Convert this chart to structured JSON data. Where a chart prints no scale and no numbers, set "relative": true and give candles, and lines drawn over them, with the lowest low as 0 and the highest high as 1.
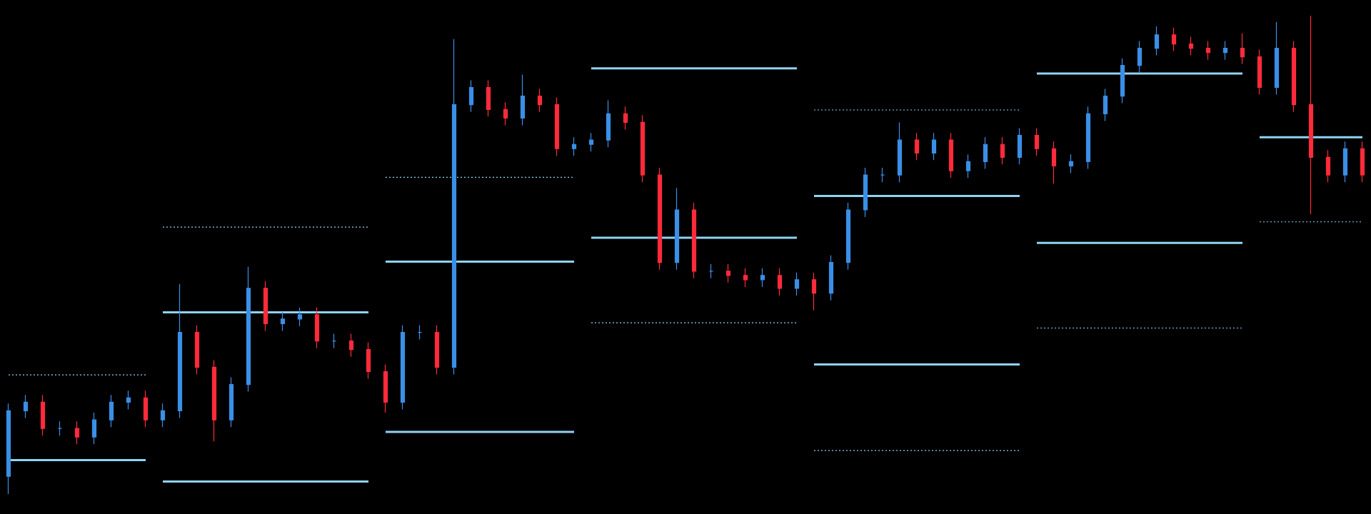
{
  "chart_data": {
    "type": "candlestick",
    "relative": true,
    "grid": false,
    "marker": "none",
    "categories": [
      null,
      null,
      null,
      null,
      null,
      null,
      null,
      null,
      null,
      null,
      null,
      null,
      null,
      null,
      null,
      null,
      null,
      null,
      null,
      null,
      null,
      null,
      null,
      null,
      null,
      null,
      null,
      null,
      null,
      null,
      null,
      null,
      null,
      null,
      null,
      null,
      null,
      null,
      null,
      null,
      null,
      null,
      null,
      null,
      null,
      null,
      null,
      null,
      null,
      null,
      null,
      null,
      null,
      null,
      null,
      null,
      null,
      null,
      null,
      null,
      null,
      null,
      null,
      null,
      null,
      null,
      null,
      null,
      null,
      null,
      null,
      null,
      null,
      null,
      null,
      null,
      null,
      null,
      null,
      null
    ],
    "colors": [
      "#3a8fe6",
      "#3a8fe6",
      "#ff2b3b",
      "#3a8fe6",
      "#ff2b3b",
      "#3a8fe6",
      "#3a8fe6",
      "#3a8fe6",
      "#ff2b3b",
      "#3a8fe6",
      "#3a8fe6",
      "#ff2b3b",
      "#ff2b3b",
      "#3a8fe6",
      "#3a8fe6",
      "#ff2b3b",
      "#3a8fe6",
      "#3a8fe6",
      "#ff2b3b",
      "#3a8fe6",
      "#ff2b3b",
      "#ff2b3b",
      "#ff2b3b",
      "#3a8fe6",
      "#3a8fe6",
      "#ff2b3b",
      "#3a8fe6",
      "#3a8fe6",
      "#ff2b3b",
      "#ff2b3b",
      "#3a8fe6",
      "#ff2b3b",
      "#ff2b3b",
      "#3a8fe6",
      "#3a8fe6",
      "#3a8fe6",
      "#ff2b3b",
      "#ff2b3b",
      "#ff2b3b",
      "#3a8fe6",
      "#ff2b3b",
      "#3a8fe6",
      "#ff2b3b",
      "#ff2b3b",
      "#3a8fe6",
      "#ff2b3b",
      "#3a8fe6",
      "#ff2b3b",
      "#3a8fe6",
      "#3a8fe6",
      "#3a8fe6",
      "#3a8fe6",
      "#3a8fe6",
      "#ff2b3b",
      "#3a8fe6",
      "#ff2b3b",
      "#3a8fe6",
      "#3a8fe6",
      "#ff2b3b",
      "#3a8fe6",
      "#ff2b3b",
      "#ff2b3b",
      "#3a8fe6",
      "#3a8fe6",
      "#3a8fe6",
      "#3a8fe6",
      "#3a8fe6",
      "#3a8fe6",
      "#ff2b3b",
      "#ff2b3b",
      "#ff2b3b",
      "#3a8fe6",
      "#ff2b3b",
      "#ff2b3b",
      "#3a8fe6",
      "#ff2b3b",
      "#ff2b3b",
      "#ff2b3b",
      "#3a8fe6",
      "#ff2b3b"
    ],
    "ohlc": [
      [
        0.037,
        0.189,
        0,
        0.174
      ],
      [
        0.174,
        0.207,
        0.159,
        0.192
      ],
      [
        0.192,
        0.207,
        0.122,
        0.137
      ],
      [
        0.137,
        0.152,
        0.122,
        0.137
      ],
      [
        0.137,
        0.152,
        0.104,
        0.119
      ],
      [
        0.119,
        0.17,
        0.104,
        0.155
      ],
      [
        0.155,
        0.207,
        0.14,
        0.192
      ],
      [
        0.192,
        0.216,
        0.177,
        0.201
      ],
      [
        0.201,
        0.216,
        0.14,
        0.155
      ],
      [
        0.155,
        0.189,
        0.14,
        0.174
      ],
      [
        0.174,
        0.439,
        0.159,
        0.338
      ],
      [
        0.338,
        0.353,
        0.25,
        0.265
      ],
      [
        0.265,
        0.28,
        0.11,
        0.155
      ],
      [
        0.155,
        0.244,
        0.14,
        0.229
      ],
      [
        0.229,
        0.475,
        0.214,
        0.43
      ],
      [
        0.43,
        0.445,
        0.341,
        0.356
      ],
      [
        0.356,
        0.381,
        0.341,
        0.366
      ],
      [
        0.366,
        0.39,
        0.351,
        0.375
      ],
      [
        0.375,
        0.39,
        0.305,
        0.32
      ],
      [
        0.32,
        0.335,
        0.305,
        0.32
      ],
      [
        0.32,
        0.335,
        0.287,
        0.302
      ],
      [
        0.302,
        0.317,
        0.241,
        0.256
      ],
      [
        0.256,
        0.271,
        0.17,
        0.192
      ],
      [
        0.192,
        0.353,
        0.177,
        0.338
      ],
      [
        0.338,
        0.353,
        0.323,
        0.338
      ],
      [
        0.338,
        0.353,
        0.25,
        0.265
      ],
      [
        0.265,
        0.951,
        0.25,
        0.814
      ],
      [
        0.814,
        0.865,
        0.799,
        0.85
      ],
      [
        0.85,
        0.865,
        0.789,
        0.804
      ],
      [
        0.804,
        0.819,
        0.771,
        0.786
      ],
      [
        0.786,
        0.877,
        0.771,
        0.832
      ],
      [
        0.832,
        0.847,
        0.799,
        0.814
      ],
      [
        0.814,
        0.829,
        0.707,
        0.722
      ],
      [
        0.722,
        0.746,
        0.707,
        0.731
      ],
      [
        0.731,
        0.755,
        0.716,
        0.74
      ],
      [
        0.74,
        0.823,
        0.725,
        0.795
      ],
      [
        0.795,
        0.81,
        0.762,
        0.777
      ],
      [
        0.777,
        0.792,
        0.652,
        0.667
      ],
      [
        0.667,
        0.682,
        0.469,
        0.484
      ],
      [
        0.484,
        0.64,
        0.469,
        0.594
      ],
      [
        0.594,
        0.609,
        0.451,
        0.466
      ],
      [
        0.466,
        0.481,
        0.451,
        0.466
      ],
      [
        0.466,
        0.481,
        0.442,
        0.457
      ],
      [
        0.457,
        0.472,
        0.433,
        0.448
      ],
      [
        0.448,
        0.472,
        0.433,
        0.457
      ],
      [
        0.457,
        0.472,
        0.415,
        0.43
      ],
      [
        0.43,
        0.463,
        0.415,
        0.448
      ],
      [
        0.448,
        0.463,
        0.384,
        0.42
      ],
      [
        0.42,
        0.499,
        0.405,
        0.484
      ],
      [
        0.484,
        0.609,
        0.469,
        0.594
      ],
      [
        0.594,
        0.682,
        0.579,
        0.667
      ],
      [
        0.667,
        0.682,
        0.652,
        0.667
      ],
      [
        0.667,
        0.777,
        0.652,
        0.74
      ],
      [
        0.74,
        0.755,
        0.698,
        0.713
      ],
      [
        0.713,
        0.755,
        0.698,
        0.74
      ],
      [
        0.74,
        0.755,
        0.661,
        0.676
      ],
      [
        0.676,
        0.71,
        0.661,
        0.695
      ],
      [
        0.695,
        0.746,
        0.68,
        0.731
      ],
      [
        0.731,
        0.746,
        0.689,
        0.704
      ],
      [
        0.704,
        0.765,
        0.689,
        0.75
      ],
      [
        0.75,
        0.765,
        0.707,
        0.722
      ],
      [
        0.722,
        0.737,
        0.649,
        0.686
      ],
      [
        0.686,
        0.71,
        0.671,
        0.695
      ],
      [
        0.695,
        0.81,
        0.68,
        0.795
      ],
      [
        0.795,
        0.847,
        0.78,
        0.832
      ],
      [
        0.832,
        0.911,
        0.817,
        0.896
      ],
      [
        0.896,
        0.947,
        0.881,
        0.932
      ],
      [
        0.932,
        0.978,
        0.917,
        0.96
      ],
      [
        0.96,
        0.975,
        0.926,
        0.941
      ],
      [
        0.941,
        0.956,
        0.917,
        0.932
      ],
      [
        0.932,
        0.947,
        0.908,
        0.923
      ],
      [
        0.923,
        0.947,
        0.908,
        0.932
      ],
      [
        0.932,
        0.963,
        0.899,
        0.914
      ],
      [
        0.914,
        0.929,
        0.835,
        0.85
      ],
      [
        0.85,
        0.987,
        0.835,
        0.932
      ],
      [
        0.932,
        0.947,
        0.799,
        0.814
      ],
      [
        0.814,
        1,
        0.585,
        0.704
      ],
      [
        0.704,
        0.719,
        0.652,
        0.667
      ],
      [
        0.667,
        0.737,
        0.652,
        0.722
      ],
      [
        0.722,
        0.737,
        0.652,
        0.667
      ]
    ],
    "series": [
      {
        "type": "line",
        "color": "#8fd3f4",
        "line_style": "solid",
        "values": [
          0.071,
          0.071,
          0.071,
          0.071,
          0.071,
          0.071,
          0.071,
          0.071,
          0.071,
          null,
          null,
          null,
          null,
          null,
          null,
          null,
          null,
          null,
          null,
          null,
          null,
          null,
          null,
          null,
          null,
          null,
          null,
          null,
          null,
          null,
          null,
          null,
          null,
          null,
          null,
          null,
          null,
          null,
          null,
          null,
          null,
          null,
          null,
          null,
          null,
          null,
          null,
          null,
          null,
          null,
          null,
          null,
          null,
          null,
          null,
          null,
          null,
          null,
          null,
          null,
          null,
          null,
          null,
          null,
          null,
          null,
          null,
          null,
          null,
          null,
          null,
          null,
          null,
          null,
          null,
          null,
          null,
          null,
          null,
          null
        ]
      },
      {
        "type": "line",
        "color": "#8fd3f4",
        "line_style": "dotted",
        "values": [
          0.249,
          0.249,
          0.249,
          0.249,
          0.249,
          0.249,
          0.249,
          0.249,
          0.249,
          null,
          null,
          null,
          null,
          null,
          null,
          null,
          null,
          null,
          null,
          null,
          null,
          null,
          null,
          null,
          null,
          null,
          null,
          null,
          null,
          null,
          null,
          null,
          null,
          null,
          null,
          null,
          null,
          null,
          null,
          null,
          null,
          null,
          null,
          null,
          null,
          null,
          null,
          null,
          null,
          null,
          null,
          null,
          null,
          null,
          null,
          null,
          null,
          null,
          null,
          null,
          null,
          null,
          null,
          null,
          null,
          null,
          null,
          null,
          null,
          null,
          null,
          null,
          null,
          null,
          null,
          null,
          null,
          null,
          null,
          null
        ]
      },
      {
        "type": "line",
        "color": "#8fd3f4",
        "line_style": "solid",
        "values": [
          null,
          null,
          null,
          null,
          null,
          null,
          null,
          null,
          null,
          0.38,
          0.38,
          0.38,
          0.38,
          0.38,
          0.38,
          0.38,
          0.38,
          0.38,
          0.38,
          0.38,
          0.38,
          0.38,
          null,
          null,
          null,
          null,
          null,
          null,
          null,
          null,
          null,
          null,
          null,
          null,
          null,
          null,
          null,
          null,
          null,
          null,
          null,
          null,
          null,
          null,
          null,
          null,
          null,
          null,
          null,
          null,
          null,
          null,
          null,
          null,
          null,
          null,
          null,
          null,
          null,
          null,
          null,
          null,
          null,
          null,
          null,
          null,
          null,
          null,
          null,
          null,
          null,
          null,
          null,
          null,
          null,
          null,
          null,
          null,
          null,
          null
        ]
      },
      {
        "type": "line",
        "color": "#8fd3f4",
        "line_style": "solid",
        "values": [
          null,
          null,
          null,
          null,
          null,
          null,
          null,
          null,
          null,
          0.026,
          0.026,
          0.026,
          0.026,
          0.026,
          0.026,
          0.026,
          0.026,
          0.026,
          0.026,
          0.026,
          0.026,
          0.026,
          null,
          null,
          null,
          null,
          null,
          null,
          null,
          null,
          null,
          null,
          null,
          null,
          null,
          null,
          null,
          null,
          null,
          null,
          null,
          null,
          null,
          null,
          null,
          null,
          null,
          null,
          null,
          null,
          null,
          null,
          null,
          null,
          null,
          null,
          null,
          null,
          null,
          null,
          null,
          null,
          null,
          null,
          null,
          null,
          null,
          null,
          null,
          null,
          null,
          null,
          null,
          null,
          null,
          null,
          null,
          null,
          null,
          null
        ]
      },
      {
        "type": "line",
        "color": "#8fd3f4",
        "line_style": "dotted",
        "values": [
          null,
          null,
          null,
          null,
          null,
          null,
          null,
          null,
          null,
          0.558,
          0.558,
          0.558,
          0.558,
          0.558,
          0.558,
          0.558,
          0.558,
          0.558,
          0.558,
          0.558,
          0.558,
          0.558,
          null,
          null,
          null,
          null,
          null,
          null,
          null,
          null,
          null,
          null,
          null,
          null,
          null,
          null,
          null,
          null,
          null,
          null,
          null,
          null,
          null,
          null,
          null,
          null,
          null,
          null,
          null,
          null,
          null,
          null,
          null,
          null,
          null,
          null,
          null,
          null,
          null,
          null,
          null,
          null,
          null,
          null,
          null,
          null,
          null,
          null,
          null,
          null,
          null,
          null,
          null,
          null,
          null,
          null,
          null,
          null,
          null,
          null
        ]
      },
      {
        "type": "line",
        "color": "#8fd3f4",
        "line_style": "solid",
        "values": [
          null,
          null,
          null,
          null,
          null,
          null,
          null,
          null,
          null,
          null,
          null,
          null,
          null,
          null,
          null,
          null,
          null,
          null,
          null,
          null,
          null,
          null,
          0.486,
          0.486,
          0.486,
          0.486,
          0.486,
          0.486,
          0.486,
          0.486,
          0.486,
          0.486,
          0.486,
          0.486,
          null,
          null,
          null,
          null,
          null,
          null,
          null,
          null,
          null,
          null,
          null,
          null,
          null,
          null,
          null,
          null,
          null,
          null,
          null,
          null,
          null,
          null,
          null,
          null,
          null,
          null,
          null,
          null,
          null,
          null,
          null,
          null,
          null,
          null,
          null,
          null,
          null,
          null,
          null,
          null,
          null,
          null,
          null,
          null,
          null,
          null
        ]
      },
      {
        "type": "line",
        "color": "#8fd3f4",
        "line_style": "solid",
        "values": [
          null,
          null,
          null,
          null,
          null,
          null,
          null,
          null,
          null,
          null,
          null,
          null,
          null,
          null,
          null,
          null,
          null,
          null,
          null,
          null,
          null,
          null,
          0.13,
          0.13,
          0.13,
          0.13,
          0.13,
          0.13,
          0.13,
          0.13,
          0.13,
          0.13,
          0.13,
          0.13,
          null,
          null,
          null,
          null,
          null,
          null,
          null,
          null,
          null,
          null,
          null,
          null,
          null,
          null,
          null,
          null,
          null,
          null,
          null,
          null,
          null,
          null,
          null,
          null,
          null,
          null,
          null,
          null,
          null,
          null,
          null,
          null,
          null,
          null,
          null,
          null,
          null,
          null,
          null,
          null,
          null,
          null,
          null,
          null,
          null,
          null
        ]
      },
      {
        "type": "line",
        "color": "#8fd3f4",
        "line_style": "dotted",
        "values": [
          null,
          null,
          null,
          null,
          null,
          null,
          null,
          null,
          null,
          null,
          null,
          null,
          null,
          null,
          null,
          null,
          null,
          null,
          null,
          null,
          null,
          null,
          0.662,
          0.662,
          0.662,
          0.662,
          0.662,
          0.662,
          0.662,
          0.662,
          0.662,
          0.662,
          0.662,
          0.662,
          null,
          null,
          null,
          null,
          null,
          null,
          null,
          null,
          null,
          null,
          null,
          null,
          null,
          null,
          null,
          null,
          null,
          null,
          null,
          null,
          null,
          null,
          null,
          null,
          null,
          null,
          null,
          null,
          null,
          null,
          null,
          null,
          null,
          null,
          null,
          null,
          null,
          null,
          null,
          null,
          null,
          null,
          null,
          null,
          null,
          null
        ]
      },
      {
        "type": "line",
        "color": "#8fd3f4",
        "line_style": "solid",
        "values": [
          null,
          null,
          null,
          null,
          null,
          null,
          null,
          null,
          null,
          null,
          null,
          null,
          null,
          null,
          null,
          null,
          null,
          null,
          null,
          null,
          null,
          null,
          null,
          null,
          null,
          null,
          null,
          null,
          null,
          null,
          null,
          null,
          null,
          null,
          0.89,
          0.89,
          0.89,
          0.89,
          0.89,
          0.89,
          0.89,
          0.89,
          0.89,
          0.89,
          0.89,
          0.89,
          0.89,
          null,
          null,
          null,
          null,
          null,
          null,
          null,
          null,
          null,
          null,
          null,
          null,
          null,
          null,
          null,
          null,
          null,
          null,
          null,
          null,
          null,
          null,
          null,
          null,
          null,
          null,
          null,
          null,
          null,
          null,
          null,
          null,
          null
        ]
      },
      {
        "type": "line",
        "color": "#8fd3f4",
        "line_style": "solid",
        "values": [
          null,
          null,
          null,
          null,
          null,
          null,
          null,
          null,
          null,
          null,
          null,
          null,
          null,
          null,
          null,
          null,
          null,
          null,
          null,
          null,
          null,
          null,
          null,
          null,
          null,
          null,
          null,
          null,
          null,
          null,
          null,
          null,
          null,
          null,
          0.536,
          0.536,
          0.536,
          0.536,
          0.536,
          0.536,
          0.536,
          0.536,
          0.536,
          0.536,
          0.536,
          0.536,
          0.536,
          null,
          null,
          null,
          null,
          null,
          null,
          null,
          null,
          null,
          null,
          null,
          null,
          null,
          null,
          null,
          null,
          null,
          null,
          null,
          null,
          null,
          null,
          null,
          null,
          null,
          null,
          null,
          null,
          null,
          null,
          null,
          null,
          null
        ]
      },
      {
        "type": "line",
        "color": "#8fd3f4",
        "line_style": "dotted",
        "values": [
          null,
          null,
          null,
          null,
          null,
          null,
          null,
          null,
          null,
          null,
          null,
          null,
          null,
          null,
          null,
          null,
          null,
          null,
          null,
          null,
          null,
          null,
          null,
          null,
          null,
          null,
          null,
          null,
          null,
          null,
          null,
          null,
          null,
          null,
          0.358,
          0.358,
          0.358,
          0.358,
          0.358,
          0.358,
          0.358,
          0.358,
          0.358,
          0.358,
          0.358,
          0.358,
          0.358,
          null,
          null,
          null,
          null,
          null,
          null,
          null,
          null,
          null,
          null,
          null,
          null,
          null,
          null,
          null,
          null,
          null,
          null,
          null,
          null,
          null,
          null,
          null,
          null,
          null,
          null,
          null,
          null,
          null,
          null,
          null,
          null,
          null
        ]
      },
      {
        "type": "line",
        "color": "#8fd3f4",
        "line_style": "solid",
        "values": [
          null,
          null,
          null,
          null,
          null,
          null,
          null,
          null,
          null,
          null,
          null,
          null,
          null,
          null,
          null,
          null,
          null,
          null,
          null,
          null,
          null,
          null,
          null,
          null,
          null,
          null,
          null,
          null,
          null,
          null,
          null,
          null,
          null,
          null,
          null,
          null,
          null,
          null,
          null,
          null,
          null,
          null,
          null,
          null,
          null,
          null,
          null,
          0.623,
          0.623,
          0.623,
          0.623,
          0.623,
          0.623,
          0.623,
          0.623,
          0.623,
          0.623,
          0.623,
          0.623,
          0.623,
          null,
          null,
          null,
          null,
          null,
          null,
          null,
          null,
          null,
          null,
          null,
          null,
          null,
          null,
          null,
          null,
          null,
          null,
          null,
          null
        ]
      },
      {
        "type": "line",
        "color": "#8fd3f4",
        "line_style": "solid",
        "values": [
          null,
          null,
          null,
          null,
          null,
          null,
          null,
          null,
          null,
          null,
          null,
          null,
          null,
          null,
          null,
          null,
          null,
          null,
          null,
          null,
          null,
          null,
          null,
          null,
          null,
          null,
          null,
          null,
          null,
          null,
          null,
          null,
          null,
          null,
          null,
          null,
          null,
          null,
          null,
          null,
          null,
          null,
          null,
          null,
          null,
          null,
          null,
          0.271,
          0.271,
          0.271,
          0.271,
          0.271,
          0.271,
          0.271,
          0.271,
          0.271,
          0.271,
          0.271,
          0.271,
          0.271,
          null,
          null,
          null,
          null,
          null,
          null,
          null,
          null,
          null,
          null,
          null,
          null,
          null,
          null,
          null,
          null,
          null,
          null,
          null,
          null
        ]
      },
      {
        "type": "line",
        "color": "#8fd3f4",
        "line_style": "dotted",
        "values": [
          null,
          null,
          null,
          null,
          null,
          null,
          null,
          null,
          null,
          null,
          null,
          null,
          null,
          null,
          null,
          null,
          null,
          null,
          null,
          null,
          null,
          null,
          null,
          null,
          null,
          null,
          null,
          null,
          null,
          null,
          null,
          null,
          null,
          null,
          null,
          null,
          null,
          null,
          null,
          null,
          null,
          null,
          null,
          null,
          null,
          null,
          null,
          0.803,
          0.803,
          0.803,
          0.803,
          0.803,
          0.803,
          0.803,
          0.803,
          0.803,
          0.803,
          0.803,
          0.803,
          0.803,
          null,
          null,
          null,
          null,
          null,
          null,
          null,
          null,
          null,
          null,
          null,
          null,
          null,
          null,
          null,
          null,
          null,
          null,
          null,
          null
        ]
      },
      {
        "type": "line",
        "color": "#8fd3f4",
        "line_style": "dotted",
        "values": [
          null,
          null,
          null,
          null,
          null,
          null,
          null,
          null,
          null,
          null,
          null,
          null,
          null,
          null,
          null,
          null,
          null,
          null,
          null,
          null,
          null,
          null,
          null,
          null,
          null,
          null,
          null,
          null,
          null,
          null,
          null,
          null,
          null,
          null,
          null,
          null,
          null,
          null,
          null,
          null,
          null,
          null,
          null,
          null,
          null,
          null,
          null,
          0.091,
          0.091,
          0.091,
          0.091,
          0.091,
          0.091,
          0.091,
          0.091,
          0.091,
          0.091,
          0.091,
          0.091,
          0.091,
          null,
          null,
          null,
          null,
          null,
          null,
          null,
          null,
          null,
          null,
          null,
          null,
          null,
          null,
          null,
          null,
          null,
          null,
          null,
          null
        ]
      },
      {
        "type": "line",
        "color": "#8fd3f4",
        "line_style": "solid",
        "values": [
          null,
          null,
          null,
          null,
          null,
          null,
          null,
          null,
          null,
          null,
          null,
          null,
          null,
          null,
          null,
          null,
          null,
          null,
          null,
          null,
          null,
          null,
          null,
          null,
          null,
          null,
          null,
          null,
          null,
          null,
          null,
          null,
          null,
          null,
          null,
          null,
          null,
          null,
          null,
          null,
          null,
          null,
          null,
          null,
          null,
          null,
          null,
          null,
          null,
          null,
          null,
          null,
          null,
          null,
          null,
          null,
          null,
          null,
          null,
          null,
          0.879,
          0.879,
          0.879,
          0.879,
          0.879,
          0.879,
          0.879,
          0.879,
          0.879,
          0.879,
          0.879,
          0.879,
          0.879,
          null,
          null,
          null,
          null,
          null,
          null,
          null
        ]
      },
      {
        "type": "line",
        "color": "#8fd3f4",
        "line_style": "solid",
        "values": [
          null,
          null,
          null,
          null,
          null,
          null,
          null,
          null,
          null,
          null,
          null,
          null,
          null,
          null,
          null,
          null,
          null,
          null,
          null,
          null,
          null,
          null,
          null,
          null,
          null,
          null,
          null,
          null,
          null,
          null,
          null,
          null,
          null,
          null,
          null,
          null,
          null,
          null,
          null,
          null,
          null,
          null,
          null,
          null,
          null,
          null,
          null,
          null,
          null,
          null,
          null,
          null,
          null,
          null,
          null,
          null,
          null,
          null,
          null,
          null,
          0.525,
          0.525,
          0.525,
          0.525,
          0.525,
          0.525,
          0.525,
          0.525,
          0.525,
          0.525,
          0.525,
          0.525,
          0.525,
          null,
          null,
          null,
          null,
          null,
          null,
          null
        ]
      },
      {
        "type": "line",
        "color": "#8fd3f4",
        "line_style": "dotted",
        "values": [
          null,
          null,
          null,
          null,
          null,
          null,
          null,
          null,
          null,
          null,
          null,
          null,
          null,
          null,
          null,
          null,
          null,
          null,
          null,
          null,
          null,
          null,
          null,
          null,
          null,
          null,
          null,
          null,
          null,
          null,
          null,
          null,
          null,
          null,
          null,
          null,
          null,
          null,
          null,
          null,
          null,
          null,
          null,
          null,
          null,
          null,
          null,
          null,
          null,
          null,
          null,
          null,
          null,
          null,
          null,
          null,
          null,
          null,
          null,
          null,
          0.347,
          0.347,
          0.347,
          0.347,
          0.347,
          0.347,
          0.347,
          0.347,
          0.347,
          0.347,
          0.347,
          0.347,
          0.347,
          null,
          null,
          null,
          null,
          null,
          null,
          null
        ]
      },
      {
        "type": "line",
        "color": "#8fd3f4",
        "line_style": "solid",
        "values": [
          null,
          null,
          null,
          null,
          null,
          null,
          null,
          null,
          null,
          null,
          null,
          null,
          null,
          null,
          null,
          null,
          null,
          null,
          null,
          null,
          null,
          null,
          null,
          null,
          null,
          null,
          null,
          null,
          null,
          null,
          null,
          null,
          null,
          null,
          null,
          null,
          null,
          null,
          null,
          null,
          null,
          null,
          null,
          null,
          null,
          null,
          null,
          null,
          null,
          null,
          null,
          null,
          null,
          null,
          null,
          null,
          null,
          null,
          null,
          null,
          null,
          null,
          null,
          null,
          null,
          null,
          null,
          null,
          null,
          null,
          null,
          null,
          null,
          0.746,
          0.746,
          0.746,
          0.746,
          0.746,
          0.746,
          0.746
        ]
      },
      {
        "type": "line",
        "color": "#8fd3f4",
        "line_style": "dotted",
        "values": [
          null,
          null,
          null,
          null,
          null,
          null,
          null,
          null,
          null,
          null,
          null,
          null,
          null,
          null,
          null,
          null,
          null,
          null,
          null,
          null,
          null,
          null,
          null,
          null,
          null,
          null,
          null,
          null,
          null,
          null,
          null,
          null,
          null,
          null,
          null,
          null,
          null,
          null,
          null,
          null,
          null,
          null,
          null,
          null,
          null,
          null,
          null,
          null,
          null,
          null,
          null,
          null,
          null,
          null,
          null,
          null,
          null,
          null,
          null,
          null,
          null,
          null,
          null,
          null,
          null,
          null,
          null,
          null,
          null,
          null,
          null,
          null,
          null,
          0.569,
          0.569,
          0.569,
          0.569,
          0.569,
          0.569,
          0.569
        ]
      }
    ]
  }
}
